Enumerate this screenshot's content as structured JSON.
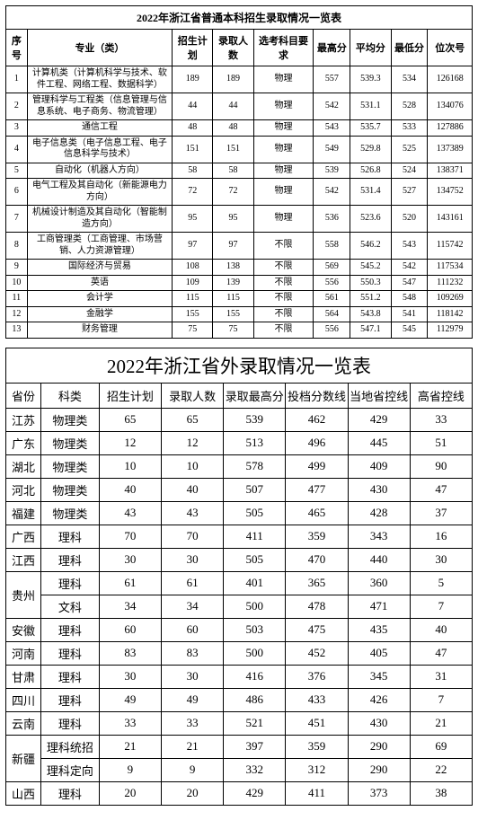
{
  "table1": {
    "title": "2022年浙江省普通本科招生录取情况一览表",
    "headers": [
      "序号",
      "专业（类）",
      "招生计划",
      "录取人数",
      "选考科目要求",
      "最高分",
      "平均分",
      "最低分",
      "位次号"
    ],
    "rows": [
      {
        "idx": "1",
        "major": "计算机类（计算机科学与技术、软件工程、网络工程、数据科学）",
        "plan": "189",
        "num": "189",
        "req": "物理",
        "hi": "557",
        "avg": "539.3",
        "lo": "534",
        "rank": "126168"
      },
      {
        "idx": "2",
        "major": "管理科学与工程类（信息管理与信息系统、电子商务、物流管理）",
        "plan": "44",
        "num": "44",
        "req": "物理",
        "hi": "542",
        "avg": "531.1",
        "lo": "528",
        "rank": "134076"
      },
      {
        "idx": "3",
        "major": "通信工程",
        "plan": "48",
        "num": "48",
        "req": "物理",
        "hi": "543",
        "avg": "535.7",
        "lo": "533",
        "rank": "127886"
      },
      {
        "idx": "4",
        "major": "电子信息类（电子信息工程、电子信息科学与技术）",
        "plan": "151",
        "num": "151",
        "req": "物理",
        "hi": "549",
        "avg": "529.8",
        "lo": "525",
        "rank": "137389"
      },
      {
        "idx": "5",
        "major": "自动化（机器人方向）",
        "plan": "58",
        "num": "58",
        "req": "物理",
        "hi": "539",
        "avg": "526.8",
        "lo": "524",
        "rank": "138371"
      },
      {
        "idx": "6",
        "major": "电气工程及其自动化（新能源电力方向）",
        "plan": "72",
        "num": "72",
        "req": "物理",
        "hi": "542",
        "avg": "531.4",
        "lo": "527",
        "rank": "134752"
      },
      {
        "idx": "7",
        "major": "机械设计制造及其自动化（智能制造方向）",
        "plan": "95",
        "num": "95",
        "req": "物理",
        "hi": "536",
        "avg": "523.6",
        "lo": "520",
        "rank": "143161"
      },
      {
        "idx": "8",
        "major": "工商管理类（工商管理、市场营销、人力资源管理）",
        "plan": "97",
        "num": "97",
        "req": "不限",
        "hi": "558",
        "avg": "546.2",
        "lo": "543",
        "rank": "115742"
      },
      {
        "idx": "9",
        "major": "国际经济与贸易",
        "plan": "108",
        "num": "138",
        "req": "不限",
        "hi": "569",
        "avg": "545.2",
        "lo": "542",
        "rank": "117534"
      },
      {
        "idx": "10",
        "major": "英语",
        "plan": "109",
        "num": "139",
        "req": "不限",
        "hi": "556",
        "avg": "550.3",
        "lo": "547",
        "rank": "111232"
      },
      {
        "idx": "11",
        "major": "会计学",
        "plan": "115",
        "num": "115",
        "req": "不限",
        "hi": "561",
        "avg": "551.2",
        "lo": "548",
        "rank": "109269"
      },
      {
        "idx": "12",
        "major": "金融学",
        "plan": "155",
        "num": "155",
        "req": "不限",
        "hi": "564",
        "avg": "543.8",
        "lo": "541",
        "rank": "118142"
      },
      {
        "idx": "13",
        "major": "财务管理",
        "plan": "75",
        "num": "75",
        "req": "不限",
        "hi": "556",
        "avg": "547.1",
        "lo": "545",
        "rank": "112979"
      }
    ]
  },
  "table2": {
    "title": "2022年浙江省外录取情况一览表",
    "headers": [
      "省份",
      "科类",
      "招生计划",
      "录取人数",
      "录取最高分",
      "投档分数线",
      "当地省控线",
      "高省控线"
    ],
    "rows": [
      {
        "prov": "江苏",
        "cat": "物理类",
        "plan": "65",
        "num": "65",
        "hi": "539",
        "line": "462",
        "ctrl": "429",
        "diff": "33",
        "rowspan": 1
      },
      {
        "prov": "广东",
        "cat": "物理类",
        "plan": "12",
        "num": "12",
        "hi": "513",
        "line": "496",
        "ctrl": "445",
        "diff": "51",
        "rowspan": 1
      },
      {
        "prov": "湖北",
        "cat": "物理类",
        "plan": "10",
        "num": "10",
        "hi": "578",
        "line": "499",
        "ctrl": "409",
        "diff": "90",
        "rowspan": 1
      },
      {
        "prov": "河北",
        "cat": "物理类",
        "plan": "40",
        "num": "40",
        "hi": "507",
        "line": "477",
        "ctrl": "430",
        "diff": "47",
        "rowspan": 1
      },
      {
        "prov": "福建",
        "cat": "物理类",
        "plan": "43",
        "num": "43",
        "hi": "505",
        "line": "465",
        "ctrl": "428",
        "diff": "37",
        "rowspan": 1
      },
      {
        "prov": "广西",
        "cat": "理科",
        "plan": "70",
        "num": "70",
        "hi": "411",
        "line": "359",
        "ctrl": "343",
        "diff": "16",
        "rowspan": 1
      },
      {
        "prov": "江西",
        "cat": "理科",
        "plan": "30",
        "num": "30",
        "hi": "505",
        "line": "470",
        "ctrl": "440",
        "diff": "30",
        "rowspan": 1
      },
      {
        "prov": "贵州",
        "cat": "理科",
        "plan": "61",
        "num": "61",
        "hi": "401",
        "line": "365",
        "ctrl": "360",
        "diff": "5",
        "rowspan": 2
      },
      {
        "prov": "",
        "cat": "文科",
        "plan": "34",
        "num": "34",
        "hi": "500",
        "line": "478",
        "ctrl": "471",
        "diff": "7",
        "rowspan": 0
      },
      {
        "prov": "安徽",
        "cat": "理科",
        "plan": "60",
        "num": "60",
        "hi": "503",
        "line": "475",
        "ctrl": "435",
        "diff": "40",
        "rowspan": 1
      },
      {
        "prov": "河南",
        "cat": "理科",
        "plan": "83",
        "num": "83",
        "hi": "500",
        "line": "452",
        "ctrl": "405",
        "diff": "47",
        "rowspan": 1
      },
      {
        "prov": "甘肃",
        "cat": "理科",
        "plan": "30",
        "num": "30",
        "hi": "416",
        "line": "376",
        "ctrl": "345",
        "diff": "31",
        "rowspan": 1
      },
      {
        "prov": "四川",
        "cat": "理科",
        "plan": "49",
        "num": "49",
        "hi": "486",
        "line": "433",
        "ctrl": "426",
        "diff": "7",
        "rowspan": 1
      },
      {
        "prov": "云南",
        "cat": "理科",
        "plan": "33",
        "num": "33",
        "hi": "521",
        "line": "451",
        "ctrl": "430",
        "diff": "21",
        "rowspan": 1
      },
      {
        "prov": "新疆",
        "cat": "理科统招",
        "plan": "21",
        "num": "21",
        "hi": "397",
        "line": "359",
        "ctrl": "290",
        "diff": "69",
        "rowspan": 2
      },
      {
        "prov": "",
        "cat": "理科定向",
        "plan": "9",
        "num": "9",
        "hi": "332",
        "line": "312",
        "ctrl": "290",
        "diff": "22",
        "rowspan": 0
      },
      {
        "prov": "山西",
        "cat": "理科",
        "plan": "20",
        "num": "20",
        "hi": "429",
        "line": "411",
        "ctrl": "373",
        "diff": "38",
        "rowspan": 1
      }
    ]
  }
}
